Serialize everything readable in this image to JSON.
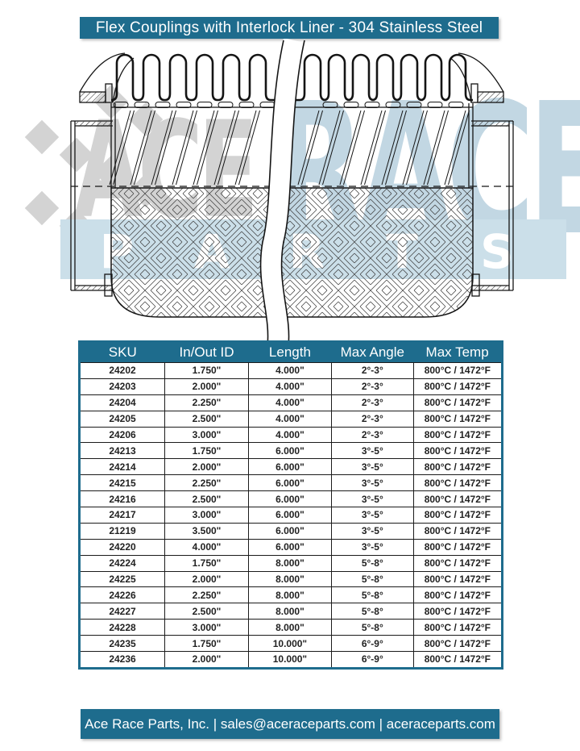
{
  "title": "Flex Couplings with Interlock Liner - 304 Stainless Steel",
  "watermark": {
    "gray_text": "ACE",
    "blue_text": "RACE",
    "band_text": "PARTS"
  },
  "table": {
    "headers": [
      "SKU",
      "In/Out ID",
      "Length",
      "Max Angle",
      "Max Temp"
    ],
    "rows": [
      [
        "24202",
        "1.750\"",
        "4.000\"",
        "2°-3°",
        "800°C / 1472°F"
      ],
      [
        "24203",
        "2.000\"",
        "4.000\"",
        "2°-3°",
        "800°C / 1472°F"
      ],
      [
        "24204",
        "2.250\"",
        "4.000\"",
        "2°-3°",
        "800°C / 1472°F"
      ],
      [
        "24205",
        "2.500\"",
        "4.000\"",
        "2°-3°",
        "800°C / 1472°F"
      ],
      [
        "24206",
        "3.000\"",
        "4.000\"",
        "2°-3°",
        "800°C / 1472°F"
      ],
      [
        "24213",
        "1.750\"",
        "6.000\"",
        "3°-5°",
        "800°C / 1472°F"
      ],
      [
        "24214",
        "2.000\"",
        "6.000\"",
        "3°-5°",
        "800°C / 1472°F"
      ],
      [
        "24215",
        "2.250\"",
        "6.000\"",
        "3°-5°",
        "800°C / 1472°F"
      ],
      [
        "24216",
        "2.500\"",
        "6.000\"",
        "3°-5°",
        "800°C / 1472°F"
      ],
      [
        "24217",
        "3.000\"",
        "6.000\"",
        "3°-5°",
        "800°C / 1472°F"
      ],
      [
        "21219",
        "3.500\"",
        "6.000\"",
        "3°-5°",
        "800°C / 1472°F"
      ],
      [
        "24220",
        "4.000\"",
        "6.000\"",
        "3°-5°",
        "800°C / 1472°F"
      ],
      [
        "24224",
        "1.750\"",
        "8.000\"",
        "5°-8°",
        "800°C / 1472°F"
      ],
      [
        "24225",
        "2.000\"",
        "8.000\"",
        "5°-8°",
        "800°C / 1472°F"
      ],
      [
        "24226",
        "2.250\"",
        "8.000\"",
        "5°-8°",
        "800°C / 1472°F"
      ],
      [
        "24227",
        "2.500\"",
        "8.000\"",
        "5°-8°",
        "800°C / 1472°F"
      ],
      [
        "24228",
        "3.000\"",
        "8.000\"",
        "5°-8°",
        "800°C / 1472°F"
      ],
      [
        "24235",
        "1.750\"",
        "10.000\"",
        "6°-9°",
        "800°C / 1472°F"
      ],
      [
        "24236",
        "2.000\"",
        "10.000\"",
        "6°-9°",
        "800°C / 1472°F"
      ]
    ]
  },
  "footer": {
    "text": "Ace Race Parts, Inc. | sales@aceraceparts.com | aceraceparts.com"
  },
  "colors": {
    "teal": "#1e6c8d",
    "watermark_gray": "#d3d3d3",
    "watermark_blue": "#c2d7e3",
    "band_blue": "#cbdfe9"
  }
}
